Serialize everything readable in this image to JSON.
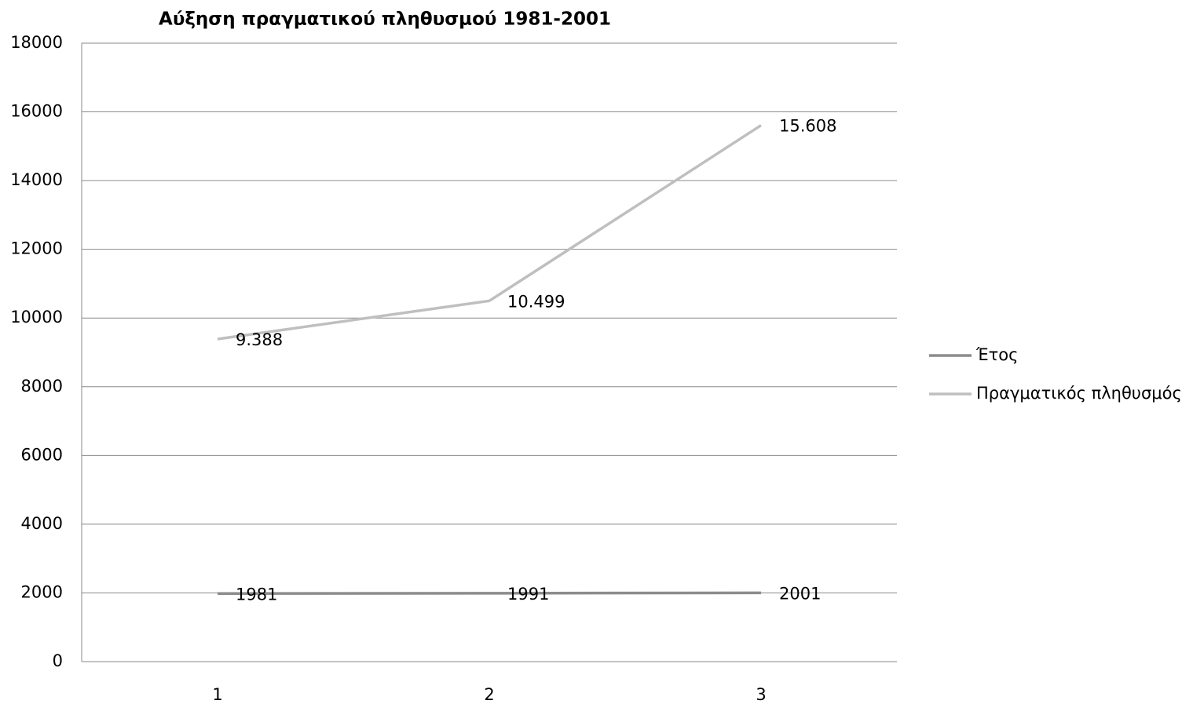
{
  "chart_data": {
    "type": "line",
    "title": "Αύξηση πραγματικού πληθυσμού 1981-2001",
    "categories": [
      "1",
      "2",
      "3"
    ],
    "series": [
      {
        "name": "Έτος",
        "color": "#8c8c8c",
        "values": [
          1981,
          1991,
          2001
        ]
      },
      {
        "name": "Πραγματικός πληθυσμός",
        "color": "#bfbfbf",
        "values": [
          9388,
          10499,
          15608
        ],
        "value_labels": [
          "9.388",
          "10.499",
          "15.608"
        ]
      }
    ],
    "ylim": [
      0,
      18000
    ],
    "yticks": [
      0,
      2000,
      4000,
      6000,
      8000,
      10000,
      12000,
      14000,
      16000,
      18000
    ],
    "grid": true,
    "legend": "right"
  }
}
